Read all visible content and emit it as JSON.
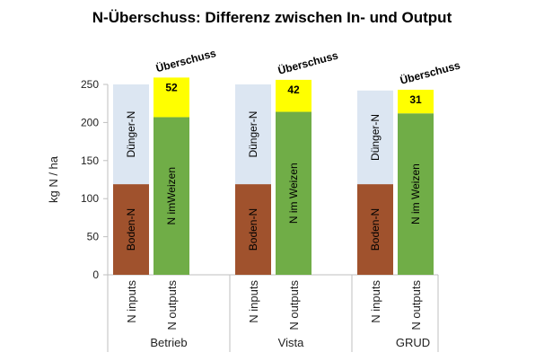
{
  "chart_data": {
    "type": "bar",
    "title": "N-Überschuss: Differenz zwischen In- und Output",
    "ylabel": "kg N / ha",
    "xlabel": "",
    "ylim": [
      0,
      250
    ],
    "yticks": [
      0,
      50,
      100,
      150,
      200,
      250
    ],
    "groups": [
      "Betrieb",
      "Vista",
      "GRUD"
    ],
    "bar_labels": [
      "N inputs",
      "N outputs"
    ],
    "inputs": {
      "segments": [
        {
          "name": "Boden-N",
          "color": "#A0522D",
          "values": [
            119,
            119,
            119
          ]
        },
        {
          "name": "Dünger-N",
          "color": "#DCE6F2",
          "values": [
            131,
            131,
            123
          ]
        }
      ]
    },
    "outputs": {
      "segments": [
        {
          "name": "N im Weizen",
          "color": "#70AD47",
          "values": [
            207,
            214,
            212
          ]
        },
        {
          "name": "Überschuss",
          "color": "#FFFF00",
          "values": [
            52,
            42,
            31
          ]
        }
      ],
      "inside_labels": [
        "N imWeizen",
        "N im Weizen",
        "N im Weizen"
      ]
    },
    "surplus_values": [
      "52",
      "42",
      "31"
    ],
    "annotation": "Überschuss"
  }
}
